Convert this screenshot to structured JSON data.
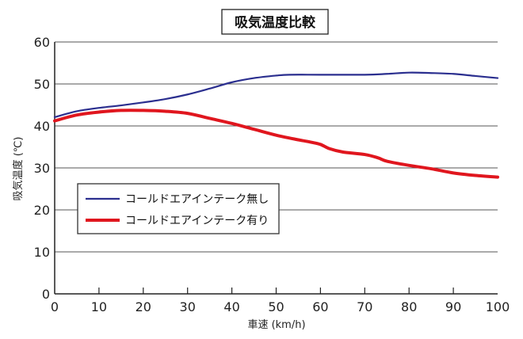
{
  "chart_data": {
    "type": "line",
    "title": "吸気温度比較",
    "xlabel": "車速 (km/h)",
    "ylabel": "吸気温度 (℃)",
    "xlim": [
      0,
      100
    ],
    "ylim": [
      0,
      60
    ],
    "x_ticks": [
      "0",
      "10",
      "20",
      "30",
      "40",
      "50",
      "60",
      "70",
      "80",
      "90",
      "100"
    ],
    "y_ticks": [
      "0",
      "10",
      "20",
      "30",
      "40",
      "50",
      "60"
    ],
    "grid": "horizontal",
    "legend_position": "left-middle",
    "series": [
      {
        "name": "コールドエアインテーク無し",
        "color": "#2b2f8f",
        "x": [
          0,
          5,
          10,
          15,
          20,
          25,
          30,
          35,
          40,
          45,
          50,
          53,
          60,
          70,
          75,
          80,
          85,
          90,
          95,
          100
        ],
        "y": [
          42.1,
          43.5,
          44.3,
          44.9,
          45.6,
          46.4,
          47.5,
          48.9,
          50.4,
          51.4,
          52.0,
          52.2,
          52.2,
          52.2,
          52.4,
          52.7,
          52.6,
          52.4,
          51.9,
          51.4
        ]
      },
      {
        "name": "コールドエアインテーク有り",
        "color": "#e0161e",
        "x": [
          0,
          5,
          10,
          15,
          20,
          25,
          30,
          35,
          40,
          45,
          50,
          55,
          58,
          60,
          62,
          65,
          70,
          73,
          75,
          80,
          85,
          90,
          95,
          100
        ],
        "y": [
          41.2,
          42.6,
          43.3,
          43.7,
          43.7,
          43.5,
          43.0,
          41.8,
          40.6,
          39.2,
          37.8,
          36.7,
          36.1,
          35.6,
          34.6,
          33.8,
          33.2,
          32.4,
          31.6,
          30.6,
          29.8,
          28.8,
          28.2,
          27.8
        ]
      }
    ]
  }
}
